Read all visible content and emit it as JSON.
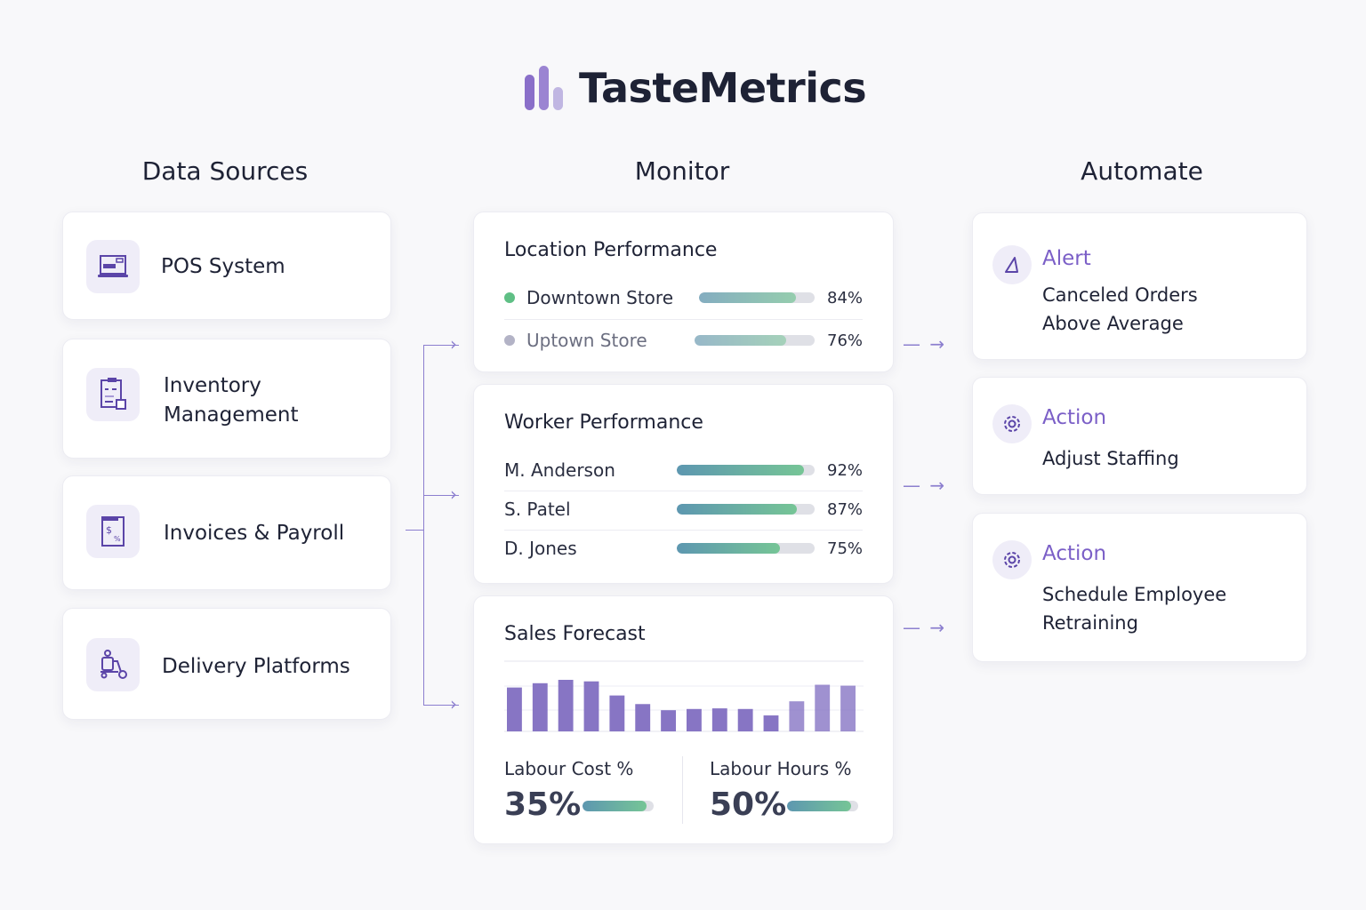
{
  "brand": {
    "name": "TasteMetrics",
    "logo_colors": [
      "#8a6fc9",
      "#9b84d2",
      "#c0b6e2"
    ]
  },
  "columns": {
    "sources": "Data Sources",
    "monitor": "Monitor",
    "automate": "Automate"
  },
  "sources": [
    {
      "label": "POS System",
      "icon": "pos-terminal-icon"
    },
    {
      "label": "Inventory Management",
      "icon": "clipboard-inventory-icon"
    },
    {
      "label": "Invoices & Payroll",
      "icon": "invoice-dollar-icon"
    },
    {
      "label": "Delivery Platforms",
      "icon": "delivery-scooter-icon"
    }
  ],
  "location": {
    "title": "Location Performance",
    "rows": [
      {
        "name": "Downtown Store",
        "pct": "84%",
        "value": 84,
        "dot": "#5fbf85"
      },
      {
        "name": "Uptown Store",
        "pct": "76%",
        "value": 76,
        "dot": "#b3b3c6"
      }
    ]
  },
  "worker": {
    "title": "Worker Performance",
    "rows": [
      {
        "name": "M. Anderson",
        "pct": "92%",
        "value": 92
      },
      {
        "name": "S. Patel",
        "pct": "87%",
        "value": 87
      },
      {
        "name": "D. Jones",
        "pct": "75%",
        "value": 75
      }
    ]
  },
  "forecast": {
    "title": "Sales Forecast",
    "bar_color": "#8775c4",
    "bars": [
      143,
      157,
      168,
      163,
      117,
      89,
      69,
      73,
      75,
      73,
      52,
      98,
      152,
      149
    ],
    "labour_cost": {
      "label": "Labour Cost %",
      "value": "35%",
      "level": 90
    },
    "labour_hours": {
      "label": "Labour Hours %",
      "value": "50%",
      "level": 90
    }
  },
  "automations": [
    {
      "kind": "Alert",
      "desc": [
        "Canceled Orders",
        "Above Average"
      ],
      "icon": "alert-triangle-icon"
    },
    {
      "kind": "Action",
      "desc": [
        "Adjust Staffing"
      ],
      "icon": "gear-icon"
    },
    {
      "kind": "Action",
      "desc": [
        "Schedule Employee",
        "Retraining"
      ],
      "icon": "gear-icon"
    }
  ],
  "accent": "#7b5fc7"
}
